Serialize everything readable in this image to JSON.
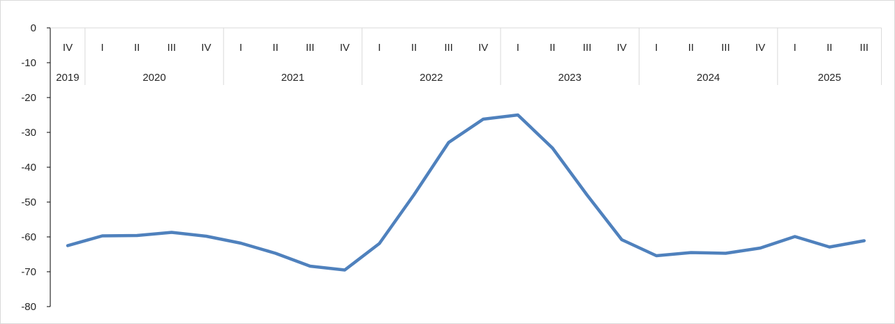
{
  "chart_data": {
    "type": "line",
    "title": "",
    "xlabel": "",
    "ylabel": "",
    "ylim": [
      -80,
      0
    ],
    "yticks": [
      0,
      -10,
      -20,
      -30,
      -40,
      -50,
      -60,
      -70,
      -80
    ],
    "grid": false,
    "legend": "none",
    "color": "#4F81BD",
    "x": [
      {
        "year": "2019",
        "quarter": "IV"
      },
      {
        "year": "2020",
        "quarter": "I"
      },
      {
        "year": "2020",
        "quarter": "II"
      },
      {
        "year": "2020",
        "quarter": "III"
      },
      {
        "year": "2020",
        "quarter": "IV"
      },
      {
        "year": "2021",
        "quarter": "I"
      },
      {
        "year": "2021",
        "quarter": "II"
      },
      {
        "year": "2021",
        "quarter": "III"
      },
      {
        "year": "2021",
        "quarter": "IV"
      },
      {
        "year": "2022",
        "quarter": "I"
      },
      {
        "year": "2022",
        "quarter": "II"
      },
      {
        "year": "2022",
        "quarter": "III"
      },
      {
        "year": "2022",
        "quarter": "IV"
      },
      {
        "year": "2023",
        "quarter": "I"
      },
      {
        "year": "2023",
        "quarter": "II"
      },
      {
        "year": "2023",
        "quarter": "III"
      },
      {
        "year": "2023",
        "quarter": "IV"
      },
      {
        "year": "2024",
        "quarter": "I"
      },
      {
        "year": "2024",
        "quarter": "II"
      },
      {
        "year": "2024",
        "quarter": "III"
      },
      {
        "year": "2024",
        "quarter": "IV"
      },
      {
        "year": "2025",
        "quarter": "I"
      },
      {
        "year": "2025",
        "quarter": "II"
      },
      {
        "year": "2025",
        "quarter": "III"
      }
    ],
    "years": [
      "2019",
      "2020",
      "2021",
      "2022",
      "2023",
      "2024",
      "2025"
    ],
    "series": [
      {
        "values": [
          -62.5,
          -59.7,
          -59.6,
          -58.7,
          -59.8,
          -61.8,
          -64.7,
          -68.4,
          -69.5,
          -61.9,
          -47.9,
          -32.9,
          -26.2,
          -25.0,
          -34.5,
          -48.0,
          -60.8,
          -65.4,
          -64.5,
          -64.7,
          -63.2,
          -59.9,
          -62.9,
          -61.1
        ]
      }
    ]
  }
}
